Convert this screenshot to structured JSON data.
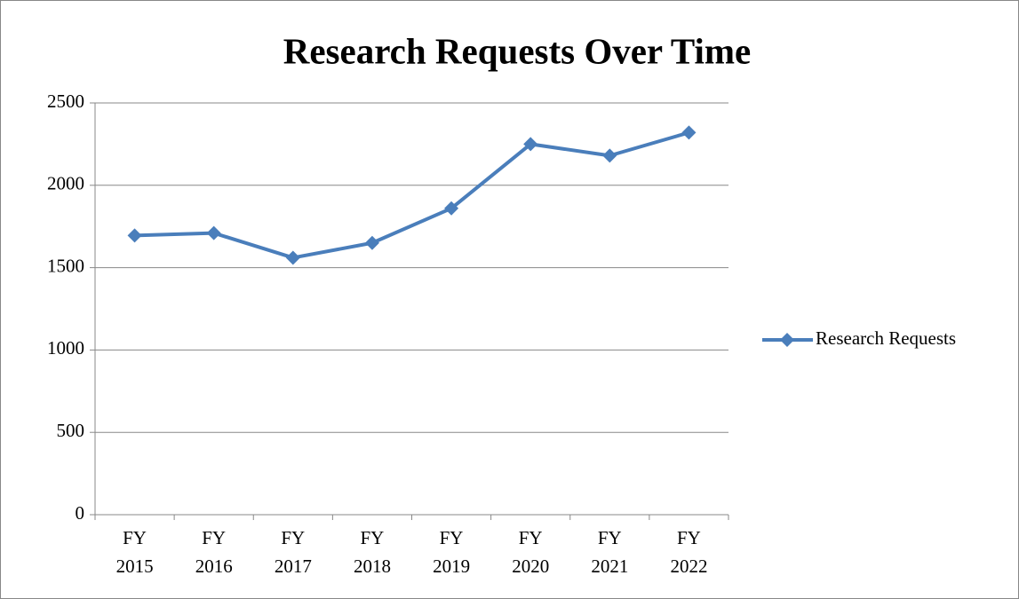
{
  "chart_data": {
    "type": "line",
    "title": "Research Requests Over Time",
    "categories": [
      "FY 2015",
      "FY 2016",
      "FY 2017",
      "FY 2018",
      "FY 2019",
      "FY 2020",
      "FY 2021",
      "FY 2022"
    ],
    "series": [
      {
        "name": "Research Requests",
        "color": "#4a7ebb",
        "values": [
          1695,
          1710,
          1560,
          1650,
          1860,
          2250,
          2180,
          2320
        ]
      }
    ],
    "ylim": [
      0,
      2500
    ],
    "yticks": [
      0,
      500,
      1000,
      1500,
      2000,
      2500
    ],
    "grid": true,
    "legend": "right"
  }
}
